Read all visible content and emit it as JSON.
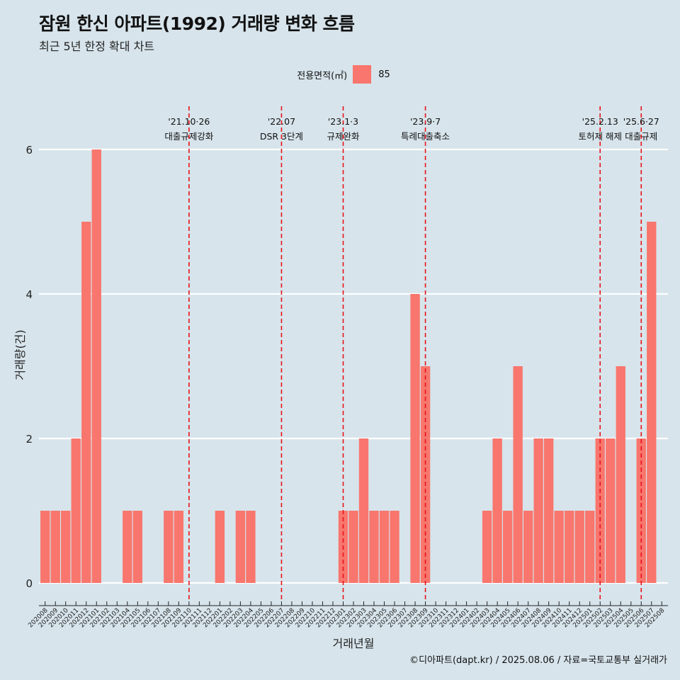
{
  "header": {
    "title": "잠원 한신 아파트(1992) 거래량 변화 흐름",
    "subtitle": "최근 5년 한정 확대 차트"
  },
  "legend": {
    "title": "전용면적(㎡)",
    "items": [
      {
        "label": "85",
        "color": "#f8766d"
      }
    ]
  },
  "caption": "©디아파트(dapt.kr) / 2025.08.06 / 자료=국토교통부 실거래가",
  "colors": {
    "background": "#d7e4eb",
    "bar": "#f8766d",
    "gridline": "#ffffff",
    "event_line": "#e8131a"
  },
  "chart_data": {
    "type": "bar",
    "xlabel": "거래년월",
    "ylabel": "거래량(건)",
    "ylim": [
      0,
      6
    ],
    "yticks": [
      0,
      2,
      4,
      6
    ],
    "grid": "horizontal major only",
    "legend_position": "top-center",
    "categories": [
      "202008",
      "202009",
      "202010",
      "202011",
      "202012",
      "202101",
      "202102",
      "202103",
      "202104",
      "202105",
      "202106",
      "202107",
      "202108",
      "202109",
      "202110",
      "202111",
      "202112",
      "202201",
      "202202",
      "202203",
      "202204",
      "202205",
      "202206",
      "202207",
      "202208",
      "202209",
      "202210",
      "202211",
      "202212",
      "202301",
      "202302",
      "202303",
      "202304",
      "202305",
      "202306",
      "202307",
      "202308",
      "202309",
      "202310",
      "202311",
      "202312",
      "202401",
      "202402",
      "202403",
      "202404",
      "202405",
      "202406",
      "202407",
      "202408",
      "202409",
      "202410",
      "202411",
      "202412",
      "202501",
      "202502",
      "202503",
      "202504",
      "202505",
      "202506",
      "202507",
      "202508"
    ],
    "series": [
      {
        "name": "85",
        "values": [
          1,
          1,
          1,
          2,
          5,
          6,
          0,
          0,
          1,
          1,
          0,
          0,
          1,
          1,
          0,
          0,
          0,
          1,
          0,
          1,
          1,
          0,
          0,
          0,
          0,
          0,
          0,
          0,
          0,
          1,
          1,
          2,
          1,
          1,
          1,
          0,
          4,
          3,
          0,
          0,
          0,
          0,
          0,
          1,
          2,
          1,
          3,
          1,
          2,
          2,
          1,
          1,
          1,
          1,
          2,
          2,
          3,
          0,
          2,
          5,
          0
        ]
      }
    ],
    "annotations": [
      {
        "x": "202110",
        "date": "'21.10·26",
        "label": "대출규제강화"
      },
      {
        "x": "202207",
        "date": "'22.07",
        "label": "DSR 3단계"
      },
      {
        "x": "202301",
        "date": "'23.1·3",
        "label": "규제완화"
      },
      {
        "x": "202309",
        "date": "'23.9·7",
        "label": "특례대출축소"
      },
      {
        "x": "202502",
        "date": "'25.2.13",
        "label": "토허제 해제"
      },
      {
        "x": "202506",
        "date": "'25.6·27",
        "label": "대출규제"
      }
    ]
  }
}
